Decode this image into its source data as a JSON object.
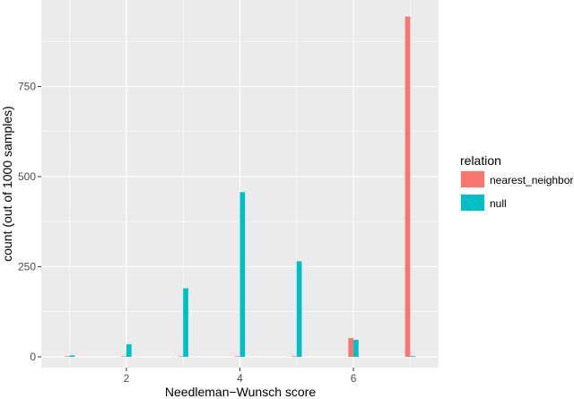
{
  "chart_data": {
    "type": "bar",
    "xlabel": "Needleman−Wunsch score",
    "ylabel": "count (out of 1000 samples)",
    "xlim": [
      0.5,
      7.5
    ],
    "ylim": [
      -30,
      990
    ],
    "x_ticks": [
      2,
      4,
      6
    ],
    "x_tick_labels": [
      "2",
      "4",
      "6"
    ],
    "y_ticks": [
      0,
      250,
      500,
      750
    ],
    "y_tick_labels": [
      "0",
      "250",
      "500",
      "750"
    ],
    "grid": true,
    "legend_position": "right",
    "legend_title": "relation",
    "x": [
      1,
      2,
      3,
      4,
      5,
      6,
      7
    ],
    "series": [
      {
        "name": "nearest_neighbor",
        "color": "#F8766D",
        "values": [
          0,
          0,
          0,
          0,
          0,
          52,
          944
        ]
      },
      {
        "name": "null",
        "color": "#00BFC4",
        "values": [
          4,
          35,
          190,
          457,
          265,
          47,
          2
        ]
      }
    ]
  }
}
